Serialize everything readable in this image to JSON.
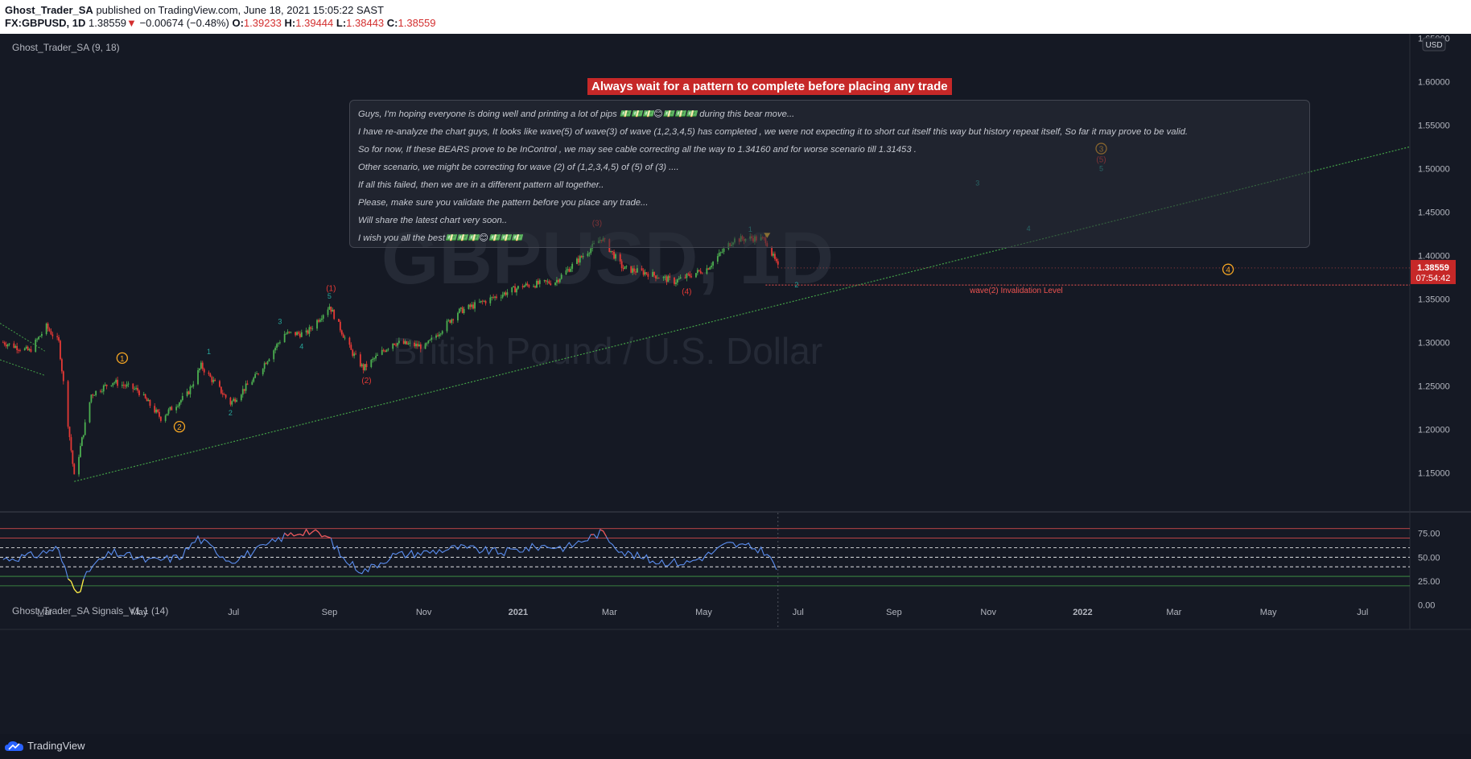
{
  "header": {
    "author": "Ghost_Trader_SA",
    "published": "published on TradingView.com, June 18, 2021 15:05:22 SAST",
    "symbol": "FX:GBPUSD, 1D",
    "last": "1.38559",
    "arrow": "▼",
    "change": "−0.00674 (−0.48%)",
    "o_label": "O:",
    "o_value": "1.39233",
    "h_label": "H:",
    "h_value": "1.39444",
    "l_label": "L:",
    "l_value": "1.38443",
    "c_label": "C:",
    "c_value": "1.38559"
  },
  "main_pane": {
    "indicator_label": "Ghost_Trader_SA (9, 18)",
    "watermark_symbol": "GBPUSD, 1D",
    "watermark_name": "British Pound / U.S. Dollar",
    "banner": "Always wait for a pattern to complete before placing any trade",
    "notes": [
      "Guys, I'm hoping everyone is doing well and printing a lot of pips 💵💵💵😊💵💵💵 during this bear move...",
      "I have re-analyze the chart guys, It looks like wave(5) of wave(3) of wave (1,2,3,4,5) has completed , we were not expecting it to short cut itself this way but history repeat itself, So far it may prove to be valid.",
      "So for now, If these BEARS prove to be InControl , we may see cable correcting all the way to 1.34160 and for worse scenario till 1.31453 .",
      "Other scenario, we might be correcting for wave (2) of (1,2,3,4,5) of (5) of (3) ....",
      "If all this failed, then we are in a different pattern all together..",
      "Please, make sure you validate the pattern before you place any trade...",
      "Will share the latest chart very soon..",
      "I wish you all the best💵💵💵😊💵💵💵"
    ],
    "invalidation_label": "wave(2) Invalidation Level",
    "currency": "USD",
    "last_price": "1.38559",
    "countdown": "07:54:42"
  },
  "osc_pane": {
    "label": "Ghost_Trader_SA Signals_V1.1 (14)"
  },
  "footer": {
    "brand": "TradingView"
  },
  "colors": {
    "up": "#26a69a",
    "down": "#ef5350",
    "candle_up": "#4caf50",
    "candle_down": "#e53935",
    "trend": "#43a047",
    "osc": "#5b8ef0",
    "osc_low": "#ffeb3b",
    "osc_high": "#ef5350",
    "wave_orange": "#f5a623",
    "wave_red": "#e53935",
    "wave_teal": "#26a69a"
  },
  "chart_data": [
    {
      "type": "candlestick",
      "x_axis": {
        "tick_labels": [
          "Mar",
          "May",
          "Jul",
          "Sep",
          "Nov",
          "2021",
          "Mar",
          "May",
          "Jul",
          "Sep",
          "Nov",
          "2022",
          "Mar",
          "May",
          "Jul"
        ]
      },
      "y_axis": {
        "tick_labels": [
          "1.65000",
          "1.60000",
          "1.55000",
          "1.50000",
          "1.45000",
          "1.40000",
          "1.35000",
          "1.30000",
          "1.25000",
          "1.20000",
          "1.15000"
        ],
        "range": [
          1.105,
          1.655
        ]
      },
      "price_path": [
        [
          "2020-02-03",
          1.3
        ],
        [
          "2020-02-20",
          1.29
        ],
        [
          "2020-03-02",
          1.318
        ],
        [
          "2020-03-10",
          1.3
        ],
        [
          "2020-03-20",
          1.145
        ],
        [
          "2020-03-31",
          1.24
        ],
        [
          "2020-04-14",
          1.255
        ],
        [
          "2020-04-30",
          1.245
        ],
        [
          "2020-05-15",
          1.213
        ],
        [
          "2020-06-01",
          1.24
        ],
        [
          "2020-06-10",
          1.273
        ],
        [
          "2020-06-29",
          1.23
        ],
        [
          "2020-07-15",
          1.26
        ],
        [
          "2020-08-03",
          1.31
        ],
        [
          "2020-08-17",
          1.31
        ],
        [
          "2020-09-01",
          1.342
        ],
        [
          "2020-09-15",
          1.29
        ],
        [
          "2020-09-23",
          1.27
        ],
        [
          "2020-10-12",
          1.3
        ],
        [
          "2020-11-02",
          1.295
        ],
        [
          "2020-11-23",
          1.335
        ],
        [
          "2020-12-14",
          1.35
        ],
        [
          "2021-01-04",
          1.365
        ],
        [
          "2021-01-25",
          1.37
        ],
        [
          "2021-02-24",
          1.42
        ],
        [
          "2021-03-10",
          1.385
        ],
        [
          "2021-03-25",
          1.38
        ],
        [
          "2021-04-12",
          1.37
        ],
        [
          "2021-05-03",
          1.385
        ],
        [
          "2021-05-20",
          1.418
        ],
        [
          "2021-06-01",
          1.42
        ],
        [
          "2021-06-10",
          1.418
        ],
        [
          "2021-06-18",
          1.386
        ]
      ],
      "trendline": {
        "from": [
          "2020-03-20",
          1.14
        ],
        "to": [
          "2022-07-25",
          1.525
        ]
      },
      "invalidation_level": 1.366,
      "last_price": 1.38559,
      "wave_labels": [
        {
          "text": "1",
          "style": "circle-orange",
          "date": "2020-04-20",
          "price": 1.282
        },
        {
          "text": "2",
          "style": "circle-orange",
          "date": "2020-05-27",
          "price": 1.203
        },
        {
          "text": "(1)",
          "style": "red",
          "date": "2020-09-02",
          "price": 1.363
        },
        {
          "text": "(2)",
          "style": "red",
          "date": "2020-09-25",
          "price": 1.257
        },
        {
          "text": "(3)",
          "style": "red",
          "date": "2021-02-21",
          "price": 1.438
        },
        {
          "text": "(4)",
          "style": "red",
          "date": "2021-04-20",
          "price": 1.359
        },
        {
          "text": "1",
          "style": "teal",
          "date": "2020-06-15",
          "price": 1.29
        },
        {
          "text": "2",
          "style": "teal",
          "date": "2020-06-29",
          "price": 1.22
        },
        {
          "text": "3",
          "style": "teal",
          "date": "2020-07-31",
          "price": 1.325
        },
        {
          "text": "4",
          "style": "teal",
          "date": "2020-08-14",
          "price": 1.296
        },
        {
          "text": "5",
          "style": "teal",
          "date": "2020-09-01",
          "price": 1.354
        },
        {
          "text": "1",
          "style": "teal",
          "date": "2021-05-31",
          "price": 1.431
        },
        {
          "text": "2",
          "style": "teal",
          "date": "2021-06-30",
          "price": 1.367
        },
        {
          "text": "3",
          "style": "teal",
          "date": "2021-10-25",
          "price": 1.484
        },
        {
          "text": "4",
          "style": "teal",
          "date": "2021-11-27",
          "price": 1.432
        },
        {
          "text": "5",
          "style": "teal",
          "date": "2022-01-13",
          "price": 1.501
        },
        {
          "text": "3",
          "style": "circle-orange",
          "date": "2022-01-13",
          "price": 1.523
        },
        {
          "text": "(5)",
          "style": "red",
          "date": "2022-01-13",
          "price": 1.511
        },
        {
          "text": "4",
          "style": "circle-orange",
          "date": "2022-04-05",
          "price": 1.384
        }
      ]
    },
    {
      "type": "line",
      "name": "Ghost_Trader_SA Signals_V1.1 (14)",
      "y_axis": {
        "tick_labels": [
          "75.00",
          "50.00",
          "25.00",
          "0.00"
        ],
        "range": [
          -2,
          84
        ]
      },
      "levels": [
        80,
        70,
        60,
        50,
        40,
        30,
        20
      ],
      "path": [
        [
          "2020-02-03",
          48
        ],
        [
          "2020-02-24",
          52
        ],
        [
          "2020-03-09",
          60
        ],
        [
          "2020-03-16",
          28
        ],
        [
          "2020-03-23",
          15
        ],
        [
          "2020-03-31",
          40
        ],
        [
          "2020-04-14",
          55
        ],
        [
          "2020-05-08",
          46
        ],
        [
          "2020-05-27",
          50
        ],
        [
          "2020-06-08",
          70
        ],
        [
          "2020-06-29",
          46
        ],
        [
          "2020-07-20",
          60
        ],
        [
          "2020-08-03",
          72
        ],
        [
          "2020-08-17",
          78
        ],
        [
          "2020-09-01",
          70
        ],
        [
          "2020-09-10",
          48
        ],
        [
          "2020-09-23",
          35
        ],
        [
          "2020-10-12",
          52
        ],
        [
          "2020-11-02",
          55
        ],
        [
          "2020-11-23",
          60
        ],
        [
          "2020-12-21",
          55
        ],
        [
          "2021-01-18",
          62
        ],
        [
          "2021-02-01",
          60
        ],
        [
          "2021-02-24",
          76
        ],
        [
          "2021-03-10",
          55
        ],
        [
          "2021-03-30",
          46
        ],
        [
          "2021-04-20",
          44
        ],
        [
          "2021-05-03",
          52
        ],
        [
          "2021-05-17",
          64
        ],
        [
          "2021-06-01",
          60
        ],
        [
          "2021-06-10",
          56
        ],
        [
          "2021-06-18",
          35
        ]
      ]
    }
  ]
}
